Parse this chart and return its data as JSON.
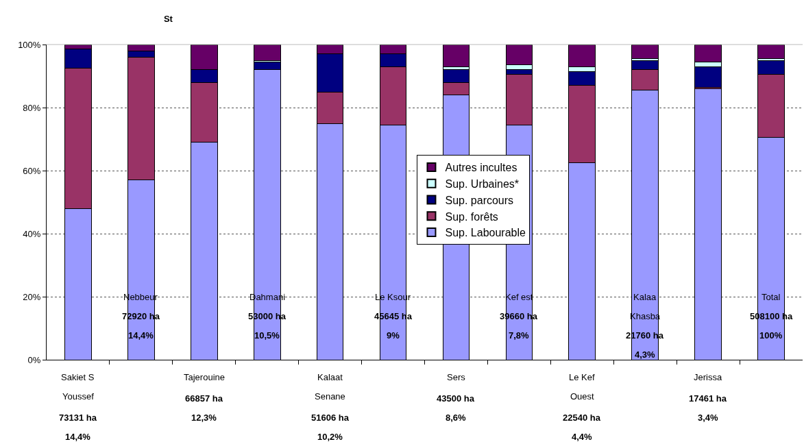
{
  "chart_data": {
    "type": "bar",
    "stacked": true,
    "title": "St",
    "categories": [
      "Sakiet S Youssef",
      "Nebbeur",
      "Tajerouine",
      "Dahmani",
      "Kalaat Senane",
      "Le Ksour",
      "Sers",
      "Kef est",
      "Le Kef Ouest",
      "Kalaa Khasba",
      "Jerissa",
      "Total"
    ],
    "series": [
      {
        "name": "Sup. Labourable",
        "color": "#9999ff",
        "values": [
          48,
          57,
          69,
          92,
          75,
          74.5,
          84,
          74.5,
          62.5,
          85.5,
          86,
          70.5
        ]
      },
      {
        "name": "Sup. forêts",
        "color": "#993366",
        "values": [
          44.5,
          39,
          19,
          0,
          10,
          18.5,
          4,
          16,
          24.5,
          6.5,
          0.5,
          20
        ]
      },
      {
        "name": "Sup. parcours",
        "color": "#000080",
        "values": [
          6,
          2,
          4,
          2.5,
          12,
          4,
          4,
          1.5,
          4.5,
          3,
          6.5,
          4.5
        ]
      },
      {
        "name": "Sup. Urbaines*",
        "color": "#ccffff",
        "values": [
          0,
          0,
          0,
          0.5,
          0,
          0,
          1,
          1.5,
          1.5,
          0.5,
          1.5,
          0.5
        ]
      },
      {
        "name": "Autres incultes",
        "color": "#660066",
        "values": [
          1.5,
          2,
          8,
          5,
          3,
          3,
          7,
          6.5,
          7,
          4.5,
          5.5,
          4.5
        ]
      }
    ],
    "ylim": [
      0,
      100
    ],
    "yticks": [
      {
        "value": 0,
        "label": "0%"
      },
      {
        "value": 20,
        "label": "20%"
      },
      {
        "value": 40,
        "label": "40%"
      },
      {
        "value": 60,
        "label": "60%"
      },
      {
        "value": 80,
        "label": "80%"
      },
      {
        "value": 100,
        "label": "100%"
      }
    ],
    "grid": "y",
    "legend": "center",
    "annotations": [
      "73131 ha",
      "14,4%",
      "72920 ha",
      "14,4%",
      "66857 ha",
      "12,3%",
      "53000 ha",
      "10,5%",
      "51606 ha",
      "10,2%",
      "45645 ha",
      "9%",
      "43500 ha",
      "8,6%",
      "39660 ha",
      "7,8%",
      "22540 ha",
      "4,4%",
      "21760 ha",
      "4,3%",
      "17461 ha",
      "3,4%",
      "508100 ha",
      "100%"
    ]
  }
}
